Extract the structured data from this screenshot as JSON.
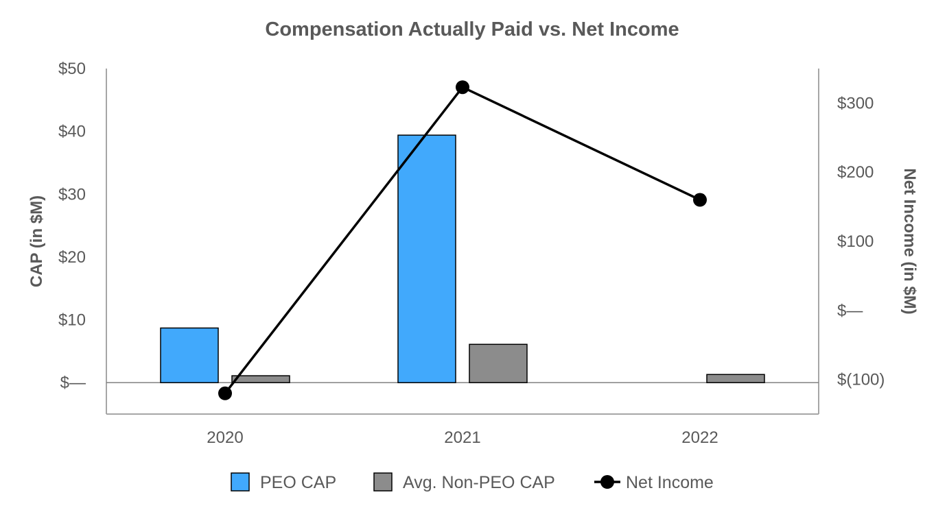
{
  "chart_data": {
    "type": "bar",
    "title": "Compensation Actually Paid vs. Net Income",
    "categories": [
      "2020",
      "2021",
      "2022"
    ],
    "ylabel_left": "CAP (in $M)",
    "ylabel_right": "Net Income (in $M)",
    "ylim_left": [
      -5,
      50
    ],
    "ylim_right": [
      -150,
      350
    ],
    "yticks_left": [
      {
        "value": 0,
        "label": "$—"
      },
      {
        "value": 10,
        "label": "$10"
      },
      {
        "value": 20,
        "label": "$20"
      },
      {
        "value": 30,
        "label": "$30"
      },
      {
        "value": 40,
        "label": "$40"
      },
      {
        "value": 50,
        "label": "$50"
      }
    ],
    "yticks_right": [
      {
        "value": -100,
        "label": "$(100)"
      },
      {
        "value": 0,
        "label": "$—"
      },
      {
        "value": 100,
        "label": "$100"
      },
      {
        "value": 200,
        "label": "$200"
      },
      {
        "value": 300,
        "label": "$300"
      }
    ],
    "series": [
      {
        "name": "PEO CAP",
        "type": "bar",
        "axis": "left",
        "color": "#41a9fc",
        "values": [
          8.7,
          39.4,
          0
        ]
      },
      {
        "name": "Avg. Non-PEO CAP",
        "type": "bar",
        "axis": "left",
        "color": "#8c8c8c",
        "values": [
          1.1,
          6.1,
          1.3
        ]
      },
      {
        "name": "Net Income",
        "type": "line",
        "axis": "right",
        "color": "#000000",
        "values": [
          -120,
          323,
          160
        ]
      }
    ],
    "legend_position": "bottom",
    "grid": false
  }
}
